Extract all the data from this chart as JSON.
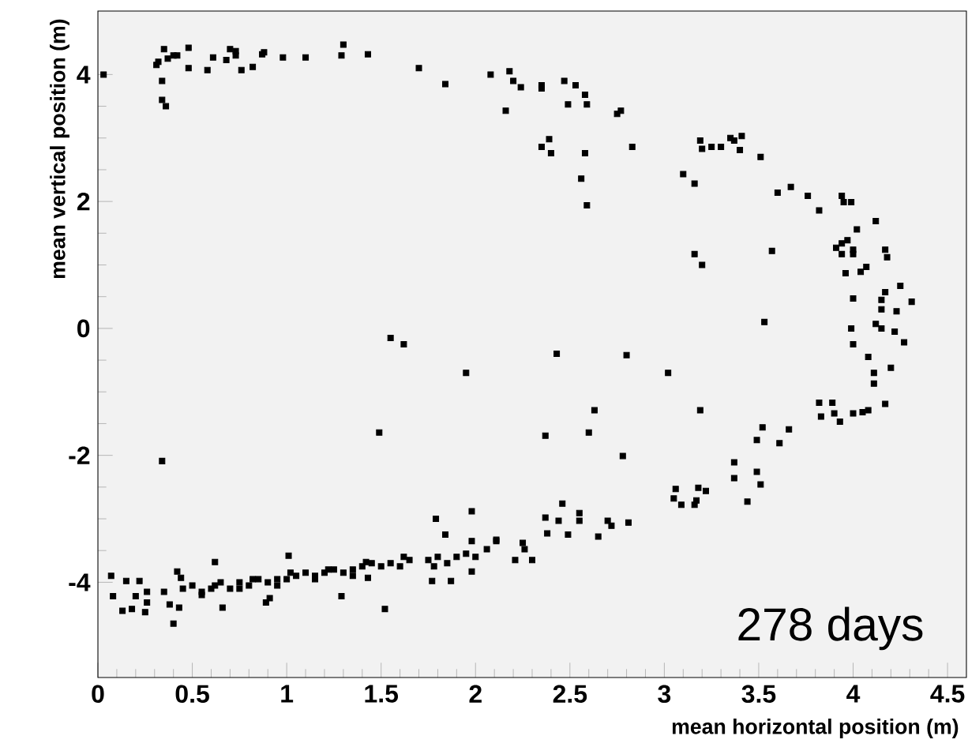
{
  "chart_data": {
    "type": "scatter",
    "xlabel": "mean horizontal position (m)",
    "ylabel": "mean vertical position (m)",
    "annotations": [
      "278 days"
    ],
    "marker": "square",
    "grid": false,
    "xlim": [
      0,
      4.6
    ],
    "ylim": [
      -5.5,
      5
    ],
    "xticks": [
      0,
      0.5,
      1,
      1.5,
      2,
      2.5,
      3,
      3.5,
      4,
      4.5
    ],
    "yticks": [
      -4,
      -2,
      0,
      2,
      4
    ],
    "series": [
      {
        "color": "#000000",
        "x": [
          0.03,
          0.31,
          0.32,
          0.35,
          0.34,
          0.34,
          0.36,
          0.37,
          0.4,
          0.42,
          0.48,
          0.48,
          0.58,
          0.61,
          0.68,
          0.7,
          0.73,
          0.73,
          0.76,
          0.82,
          0.87,
          0.88,
          0.98,
          1.1,
          1.29,
          1.3,
          1.43,
          1.7,
          1.84,
          2.08,
          1.55,
          1.62,
          1.95,
          2.18,
          2.2,
          2.24,
          2.35,
          2.35,
          2.47,
          2.53,
          2.58,
          2.59,
          2.49,
          2.16,
          2.75,
          2.77,
          2.35,
          2.39,
          2.4,
          2.58,
          2.56,
          2.59,
          2.83,
          3.1,
          3.16,
          3.19,
          3.2,
          3.25,
          3.3,
          3.35,
          3.37,
          3.41,
          3.4,
          3.51,
          3.6,
          3.67,
          3.76,
          3.82,
          3.94,
          3.95,
          3.99,
          4.12,
          4.02,
          3.97,
          3.94,
          3.91,
          3.94,
          4.0,
          4.0,
          4.17,
          4.18,
          3.57,
          3.16,
          3.2,
          3.96,
          4.04,
          4.07,
          4.25,
          4.17,
          4.15,
          4.31,
          4.15,
          4.23,
          4.0,
          3.53,
          4.12,
          4.15,
          4.22,
          3.99,
          4.0,
          4.27,
          4.08,
          4.2,
          4.11,
          2.43,
          2.8,
          3.02,
          4.11,
          3.82,
          3.89,
          3.83,
          3.9,
          3.93,
          4.0,
          4.05,
          4.08,
          4.17,
          3.19,
          2.63,
          2.6,
          2.37,
          2.78,
          3.52,
          3.49,
          3.66,
          3.61,
          3.37,
          3.37,
          3.49,
          3.51,
          3.44,
          3.06,
          3.05,
          3.09,
          3.18,
          3.22,
          3.17,
          3.16,
          2.37,
          2.46,
          2.44,
          2.55,
          2.55,
          2.7,
          2.72,
          2.81,
          2.65,
          2.38,
          2.49,
          2.11,
          2.06,
          2.25,
          2.26,
          2.21,
          2.3,
          2.0,
          0.34,
          1.49,
          1.98,
          1.79,
          1.84,
          1.98,
          2.11,
          0.07,
          0.08,
          0.13,
          0.18,
          0.15,
          0.2,
          0.22,
          0.25,
          0.26,
          0.26,
          0.4,
          0.38,
          0.43,
          0.42,
          0.44,
          0.62,
          0.66,
          1.01,
          1.29,
          1.52,
          0.89,
          0.91,
          1.77,
          1.87,
          1.98,
          1.43,
          0.35,
          0.45,
          0.5,
          0.55,
          0.6,
          0.65,
          0.7,
          0.75,
          0.8,
          0.85,
          0.9,
          0.95,
          1.0,
          1.05,
          1.1,
          1.15,
          1.2,
          1.25,
          1.3,
          1.35,
          1.4,
          1.45,
          1.5,
          1.55,
          1.6,
          1.65,
          1.75,
          1.8,
          1.85,
          1.9,
          1.95,
          0.55,
          0.75,
          0.95,
          1.15,
          1.35,
          0.62,
          0.82,
          1.02,
          1.22,
          1.42,
          1.62,
          1.78
        ],
        "values": [
          4.0,
          4.15,
          4.2,
          4.4,
          3.9,
          3.6,
          3.5,
          4.25,
          4.3,
          4.3,
          4.42,
          4.1,
          4.07,
          4.27,
          4.23,
          4.4,
          4.37,
          4.3,
          4.07,
          4.12,
          4.32,
          4.35,
          4.27,
          4.27,
          4.3,
          4.47,
          4.32,
          4.1,
          3.85,
          4.0,
          -0.15,
          -0.25,
          -0.7,
          4.05,
          3.9,
          3.8,
          3.83,
          3.78,
          3.9,
          3.83,
          3.68,
          3.53,
          3.53,
          3.43,
          3.38,
          3.43,
          2.86,
          2.98,
          2.76,
          2.76,
          2.36,
          1.94,
          2.86,
          2.43,
          2.28,
          2.96,
          2.83,
          2.86,
          2.86,
          3.0,
          2.96,
          3.03,
          2.81,
          2.7,
          2.14,
          2.23,
          2.09,
          1.86,
          2.09,
          1.99,
          1.99,
          1.69,
          1.56,
          1.39,
          1.34,
          1.27,
          1.17,
          1.24,
          1.17,
          1.24,
          1.12,
          1.22,
          1.17,
          1.0,
          0.87,
          0.89,
          0.97,
          0.67,
          0.57,
          0.45,
          0.42,
          0.3,
          0.27,
          0.47,
          0.1,
          0.07,
          0.0,
          -0.05,
          0.0,
          -0.25,
          -0.22,
          -0.45,
          -0.62,
          -0.7,
          -0.4,
          -0.42,
          -0.7,
          -0.87,
          -1.17,
          -1.17,
          -1.39,
          -1.34,
          -1.47,
          -1.34,
          -1.32,
          -1.29,
          -1.19,
          -1.29,
          -1.29,
          -1.64,
          -1.69,
          -2.01,
          -1.56,
          -1.76,
          -1.59,
          -1.81,
          -2.11,
          -2.36,
          -2.26,
          -2.46,
          -2.73,
          -2.53,
          -2.68,
          -2.78,
          -2.51,
          -2.56,
          -2.71,
          -2.78,
          -2.98,
          -2.76,
          -3.03,
          -2.91,
          -3.03,
          -3.03,
          -3.11,
          -3.06,
          -3.28,
          -3.23,
          -3.25,
          -3.33,
          -3.48,
          -3.38,
          -3.48,
          -3.65,
          -3.65,
          -3.6,
          -2.09,
          -1.64,
          -2.88,
          -3.0,
          -3.25,
          -3.35,
          -3.35,
          -3.9,
          -4.22,
          -4.45,
          -4.42,
          -3.98,
          -4.22,
          -3.98,
          -4.47,
          -4.32,
          -4.15,
          -4.65,
          -4.35,
          -4.4,
          -3.83,
          -3.93,
          -3.68,
          -4.4,
          -3.58,
          -4.22,
          -4.42,
          -4.32,
          -4.25,
          -3.98,
          -3.98,
          -3.83,
          -3.93,
          -4.15,
          -4.1,
          -4.05,
          -4.15,
          -4.1,
          -4.0,
          -4.1,
          -4.0,
          -4.05,
          -3.95,
          -4.0,
          -3.95,
          -3.95,
          -3.9,
          -3.85,
          -3.9,
          -3.85,
          -3.8,
          -3.85,
          -3.8,
          -3.75,
          -3.7,
          -3.75,
          -3.7,
          -3.75,
          -3.65,
          -3.65,
          -3.6,
          -3.7,
          -3.6,
          -3.55,
          -4.2,
          -4.1,
          -4.05,
          -3.95,
          -3.9,
          -4.05,
          -3.95,
          -3.85,
          -3.8,
          -3.68,
          -3.6,
          -3.75
        ]
      }
    ]
  }
}
